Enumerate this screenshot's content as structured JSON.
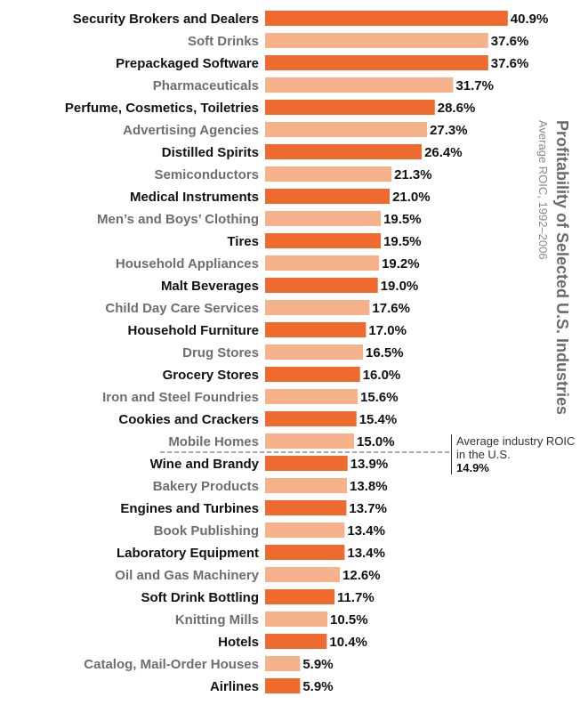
{
  "chart_data": {
    "type": "bar",
    "orientation": "horizontal",
    "title": "Profitability of Selected U.S. Industries",
    "subtitle": "Average ROIC, 1992–2006",
    "categories": [
      "Security Brokers and Dealers",
      "Soft Drinks",
      "Prepackaged Software",
      "Pharmaceuticals",
      "Perfume, Cosmetics, Toiletries",
      "Advertising Agencies",
      "Distilled Spirits",
      "Semiconductors",
      "Medical Instruments",
      "Men’s and Boys’ Clothing",
      "Tires",
      "Household Appliances",
      "Malt Beverages",
      "Child Day Care Services",
      "Household Furniture",
      "Drug Stores",
      "Grocery Stores",
      "Iron and Steel Foundries",
      "Cookies and Crackers",
      "Mobile Homes",
      "Wine and Brandy",
      "Bakery Products",
      "Engines and Turbines",
      "Book Publishing",
      "Laboratory Equipment",
      "Oil and Gas Machinery",
      "Soft Drink Bottling",
      "Knitting Mills",
      "Hotels",
      "Catalog, Mail-Order Houses",
      "Airlines"
    ],
    "values": [
      40.9,
      37.6,
      37.6,
      31.7,
      28.6,
      27.3,
      26.4,
      21.3,
      21.0,
      19.5,
      19.5,
      19.2,
      19.0,
      17.6,
      17.0,
      16.5,
      16.0,
      15.6,
      15.4,
      15.0,
      13.9,
      13.8,
      13.7,
      13.4,
      13.4,
      12.6,
      11.7,
      10.5,
      10.4,
      5.9,
      5.9
    ],
    "value_labels": [
      "40.9%",
      "37.6%",
      "37.6%",
      "31.7%",
      "28.6%",
      "27.3%",
      "26.4%",
      "21.3%",
      "21.0%",
      "19.5%",
      "19.5%",
      "19.2%",
      "19.0%",
      "17.6%",
      "17.0%",
      "16.5%",
      "16.0%",
      "15.6%",
      "15.4%",
      "15.0%",
      "13.9%",
      "13.8%",
      "13.7%",
      "13.4%",
      "13.4%",
      "12.6%",
      "11.7%",
      "10.5%",
      "10.4%",
      "5.9%",
      "5.9%"
    ],
    "unit": "%",
    "xlim": [
      0,
      41
    ],
    "grid": false,
    "colors": {
      "dark": "#ee6a2e",
      "light": "#f6b28a",
      "dark_label": "#111111",
      "light_label": "#6e6e6e"
    },
    "reference_line": {
      "value": 14.9,
      "label": "Average industry ROIC in the U.S.",
      "value_label": "14.9%"
    }
  }
}
